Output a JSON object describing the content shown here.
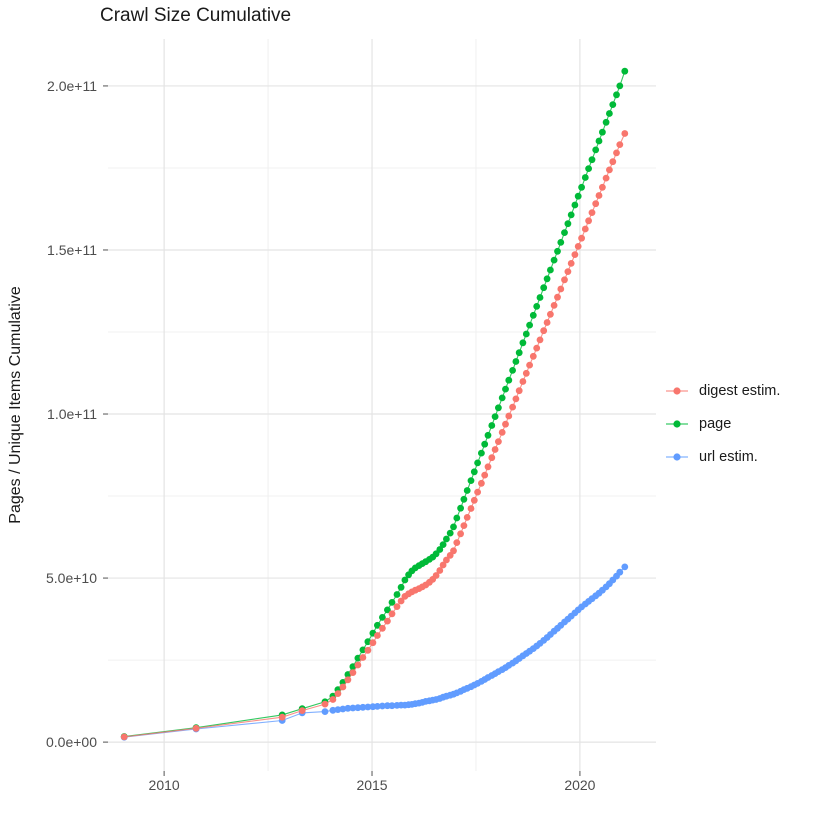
{
  "chart_data": {
    "type": "scatter",
    "title": "Crawl Size Cumulative",
    "xlabel": "",
    "ylabel": "Pages / Unique Items Cumulative",
    "legend_position": "right",
    "grid": true,
    "value_unit_note": "point values stored in billions (1e9 items)",
    "x_range": [
      2008.65,
      2021.83
    ],
    "y_range_billions": [
      -8.8,
      214.3
    ],
    "x_ticks": [
      {
        "value": 2010,
        "label": "2010"
      },
      {
        "value": 2015,
        "label": "2015"
      },
      {
        "value": 2020,
        "label": "2020"
      }
    ],
    "x_minor_ticks": [
      2012.5,
      2017.5
    ],
    "y_ticks": [
      {
        "value": 0,
        "label": "0.0e+00"
      },
      {
        "value": 50,
        "label": "5.0e+10"
      },
      {
        "value": 100,
        "label": "1.0e+11"
      },
      {
        "value": 150,
        "label": "1.5e+11"
      },
      {
        "value": 200,
        "label": "2.0e+11"
      }
    ],
    "y_minor_ticks": [
      25,
      75,
      125,
      175
    ],
    "draw_order": [
      "url estim.",
      "page",
      "digest estim."
    ],
    "series": [
      {
        "name": "digest estim.",
        "color": "#F8766D",
        "points": [
          [
            2009.04,
            1.6
          ],
          [
            2010.77,
            4.2
          ],
          [
            2012.84,
            7.6
          ],
          [
            2013.32,
            9.6
          ],
          [
            2013.87,
            11.6
          ],
          [
            2014.06,
            13.0
          ],
          [
            2014.18,
            14.8
          ],
          [
            2014.3,
            16.8
          ],
          [
            2014.42,
            19.0
          ],
          [
            2014.54,
            21.2
          ],
          [
            2014.66,
            23.5
          ],
          [
            2014.78,
            25.8
          ],
          [
            2014.9,
            28.0
          ],
          [
            2015.02,
            30.3
          ],
          [
            2015.13,
            32.5
          ],
          [
            2015.25,
            34.7
          ],
          [
            2015.37,
            36.9
          ],
          [
            2015.48,
            39.1
          ],
          [
            2015.6,
            41.3
          ],
          [
            2015.7,
            43.0
          ],
          [
            2015.79,
            44.4
          ],
          [
            2015.88,
            45.2
          ],
          [
            2015.96,
            45.8
          ],
          [
            2016.04,
            46.3
          ],
          [
            2016.13,
            46.8
          ],
          [
            2016.21,
            47.3
          ],
          [
            2016.29,
            47.9
          ],
          [
            2016.38,
            48.7
          ],
          [
            2016.46,
            49.6
          ],
          [
            2016.54,
            50.8
          ],
          [
            2016.63,
            52.3
          ],
          [
            2016.71,
            54.0
          ],
          [
            2016.79,
            55.5
          ],
          [
            2016.88,
            56.9
          ],
          [
            2016.96,
            58.3
          ],
          [
            2017.04,
            60.8
          ],
          [
            2017.13,
            63.5
          ],
          [
            2017.21,
            66.0
          ],
          [
            2017.29,
            68.5
          ],
          [
            2017.38,
            71.2
          ],
          [
            2017.46,
            73.7
          ],
          [
            2017.54,
            76.2
          ],
          [
            2017.63,
            78.9
          ],
          [
            2017.71,
            81.4
          ],
          [
            2017.79,
            83.9
          ],
          [
            2017.88,
            86.7
          ],
          [
            2017.96,
            89.2
          ],
          [
            2018.04,
            91.6
          ],
          [
            2018.13,
            94.4
          ],
          [
            2018.21,
            96.9
          ],
          [
            2018.29,
            99.4
          ],
          [
            2018.38,
            102.1
          ],
          [
            2018.46,
            104.6
          ],
          [
            2018.54,
            107.1
          ],
          [
            2018.63,
            109.9
          ],
          [
            2018.71,
            112.4
          ],
          [
            2018.79,
            114.9
          ],
          [
            2018.88,
            117.6
          ],
          [
            2018.96,
            120.1
          ],
          [
            2019.04,
            122.6
          ],
          [
            2019.13,
            125.4
          ],
          [
            2019.21,
            127.9
          ],
          [
            2019.29,
            130.4
          ],
          [
            2019.38,
            133.1
          ],
          [
            2019.46,
            135.6
          ],
          [
            2019.54,
            138.1
          ],
          [
            2019.63,
            140.9
          ],
          [
            2019.71,
            143.4
          ],
          [
            2019.79,
            145.9
          ],
          [
            2019.88,
            148.6
          ],
          [
            2019.96,
            151.1
          ],
          [
            2020.04,
            153.6
          ],
          [
            2020.13,
            156.4
          ],
          [
            2020.21,
            158.9
          ],
          [
            2020.29,
            161.4
          ],
          [
            2020.38,
            164.1
          ],
          [
            2020.46,
            166.6
          ],
          [
            2020.54,
            169.1
          ],
          [
            2020.63,
            171.9
          ],
          [
            2020.71,
            174.4
          ],
          [
            2020.79,
            176.9
          ],
          [
            2020.88,
            179.6
          ],
          [
            2020.96,
            182.1
          ],
          [
            2021.08,
            185.5
          ]
        ]
      },
      {
        "name": "page",
        "color": "#00BA38",
        "points": [
          [
            2009.04,
            1.7
          ],
          [
            2010.77,
            4.4
          ],
          [
            2012.84,
            8.3
          ],
          [
            2013.32,
            10.2
          ],
          [
            2013.87,
            12.3
          ],
          [
            2014.06,
            14.0
          ],
          [
            2014.18,
            16.0
          ],
          [
            2014.3,
            18.2
          ],
          [
            2014.42,
            20.6
          ],
          [
            2014.54,
            23.0
          ],
          [
            2014.66,
            25.6
          ],
          [
            2014.78,
            28.1
          ],
          [
            2014.9,
            30.6
          ],
          [
            2015.02,
            33.2
          ],
          [
            2015.13,
            35.6
          ],
          [
            2015.25,
            38.0
          ],
          [
            2015.37,
            40.3
          ],
          [
            2015.48,
            42.6
          ],
          [
            2015.6,
            45.0
          ],
          [
            2015.7,
            47.2
          ],
          [
            2015.79,
            49.4
          ],
          [
            2015.88,
            51.0
          ],
          [
            2015.96,
            52.2
          ],
          [
            2016.04,
            53.1
          ],
          [
            2016.13,
            53.8
          ],
          [
            2016.21,
            54.4
          ],
          [
            2016.29,
            55.0
          ],
          [
            2016.38,
            55.7
          ],
          [
            2016.46,
            56.4
          ],
          [
            2016.54,
            57.4
          ],
          [
            2016.63,
            58.7
          ],
          [
            2016.71,
            60.2
          ],
          [
            2016.79,
            61.9
          ],
          [
            2016.88,
            63.7
          ],
          [
            2016.96,
            65.6
          ],
          [
            2017.04,
            68.3
          ],
          [
            2017.13,
            71.3
          ],
          [
            2017.21,
            74.0
          ],
          [
            2017.29,
            76.7
          ],
          [
            2017.38,
            79.7
          ],
          [
            2017.46,
            82.4
          ],
          [
            2017.54,
            85.1
          ],
          [
            2017.63,
            88.1
          ],
          [
            2017.71,
            90.8
          ],
          [
            2017.79,
            93.5
          ],
          [
            2017.88,
            96.5
          ],
          [
            2017.96,
            99.2
          ],
          [
            2018.04,
            101.9
          ],
          [
            2018.13,
            104.9
          ],
          [
            2018.21,
            107.6
          ],
          [
            2018.29,
            110.3
          ],
          [
            2018.38,
            113.3
          ],
          [
            2018.46,
            116.0
          ],
          [
            2018.54,
            118.7
          ],
          [
            2018.63,
            121.7
          ],
          [
            2018.71,
            124.4
          ],
          [
            2018.79,
            127.1
          ],
          [
            2018.88,
            130.1
          ],
          [
            2018.96,
            132.8
          ],
          [
            2019.04,
            135.5
          ],
          [
            2019.13,
            138.5
          ],
          [
            2019.21,
            141.2
          ],
          [
            2019.29,
            143.9
          ],
          [
            2019.38,
            146.9
          ],
          [
            2019.46,
            149.6
          ],
          [
            2019.54,
            152.3
          ],
          [
            2019.63,
            155.3
          ],
          [
            2019.71,
            158.0
          ],
          [
            2019.79,
            160.7
          ],
          [
            2019.88,
            163.7
          ],
          [
            2019.96,
            166.4
          ],
          [
            2020.04,
            169.1
          ],
          [
            2020.13,
            172.1
          ],
          [
            2020.21,
            174.8
          ],
          [
            2020.29,
            177.5
          ],
          [
            2020.38,
            180.5
          ],
          [
            2020.46,
            183.2
          ],
          [
            2020.54,
            185.9
          ],
          [
            2020.63,
            188.9
          ],
          [
            2020.71,
            191.6
          ],
          [
            2020.79,
            194.3
          ],
          [
            2020.88,
            197.3
          ],
          [
            2020.96,
            200.0
          ],
          [
            2021.08,
            204.5
          ]
        ]
      },
      {
        "name": "url estim.",
        "color": "#619CFF",
        "points": [
          [
            2009.04,
            1.5
          ],
          [
            2010.77,
            4.0
          ],
          [
            2012.84,
            6.6
          ],
          [
            2013.32,
            8.9
          ],
          [
            2013.87,
            9.3
          ],
          [
            2014.06,
            9.7
          ],
          [
            2014.18,
            9.9
          ],
          [
            2014.3,
            10.1
          ],
          [
            2014.42,
            10.3
          ],
          [
            2014.54,
            10.4
          ],
          [
            2014.66,
            10.5
          ],
          [
            2014.78,
            10.6
          ],
          [
            2014.9,
            10.7
          ],
          [
            2015.02,
            10.8
          ],
          [
            2015.13,
            10.9
          ],
          [
            2015.25,
            11.0
          ],
          [
            2015.37,
            11.1
          ],
          [
            2015.48,
            11.1
          ],
          [
            2015.6,
            11.2
          ],
          [
            2015.7,
            11.3
          ],
          [
            2015.79,
            11.3
          ],
          [
            2015.88,
            11.4
          ],
          [
            2015.96,
            11.5
          ],
          [
            2016.04,
            11.7
          ],
          [
            2016.13,
            11.9
          ],
          [
            2016.21,
            12.1
          ],
          [
            2016.29,
            12.4
          ],
          [
            2016.38,
            12.6
          ],
          [
            2016.46,
            12.8
          ],
          [
            2016.54,
            13.0
          ],
          [
            2016.63,
            13.3
          ],
          [
            2016.71,
            13.7
          ],
          [
            2016.79,
            14.0
          ],
          [
            2016.88,
            14.3
          ],
          [
            2016.96,
            14.6
          ],
          [
            2017.04,
            15.0
          ],
          [
            2017.13,
            15.5
          ],
          [
            2017.21,
            16.0
          ],
          [
            2017.29,
            16.4
          ],
          [
            2017.38,
            16.9
          ],
          [
            2017.46,
            17.4
          ],
          [
            2017.54,
            17.9
          ],
          [
            2017.63,
            18.5
          ],
          [
            2017.71,
            19.1
          ],
          [
            2017.79,
            19.7
          ],
          [
            2017.88,
            20.3
          ],
          [
            2017.96,
            20.9
          ],
          [
            2018.04,
            21.5
          ],
          [
            2018.13,
            22.1
          ],
          [
            2018.21,
            22.7
          ],
          [
            2018.29,
            23.4
          ],
          [
            2018.38,
            24.1
          ],
          [
            2018.46,
            24.8
          ],
          [
            2018.54,
            25.5
          ],
          [
            2018.63,
            26.3
          ],
          [
            2018.71,
            27.0
          ],
          [
            2018.79,
            27.7
          ],
          [
            2018.88,
            28.5
          ],
          [
            2018.96,
            29.3
          ],
          [
            2019.04,
            30.1
          ],
          [
            2019.13,
            31.0
          ],
          [
            2019.21,
            31.9
          ],
          [
            2019.29,
            32.8
          ],
          [
            2019.38,
            33.8
          ],
          [
            2019.46,
            34.7
          ],
          [
            2019.54,
            35.6
          ],
          [
            2019.63,
            36.6
          ],
          [
            2019.71,
            37.5
          ],
          [
            2019.79,
            38.4
          ],
          [
            2019.88,
            39.4
          ],
          [
            2019.96,
            40.3
          ],
          [
            2020.04,
            41.2
          ],
          [
            2020.13,
            42.1
          ],
          [
            2020.21,
            42.9
          ],
          [
            2020.29,
            43.7
          ],
          [
            2020.38,
            44.6
          ],
          [
            2020.46,
            45.4
          ],
          [
            2020.54,
            46.3
          ],
          [
            2020.63,
            47.3
          ],
          [
            2020.71,
            48.3
          ],
          [
            2020.79,
            49.4
          ],
          [
            2020.88,
            50.6
          ],
          [
            2020.96,
            51.8
          ],
          [
            2021.08,
            53.4
          ]
        ]
      }
    ]
  }
}
